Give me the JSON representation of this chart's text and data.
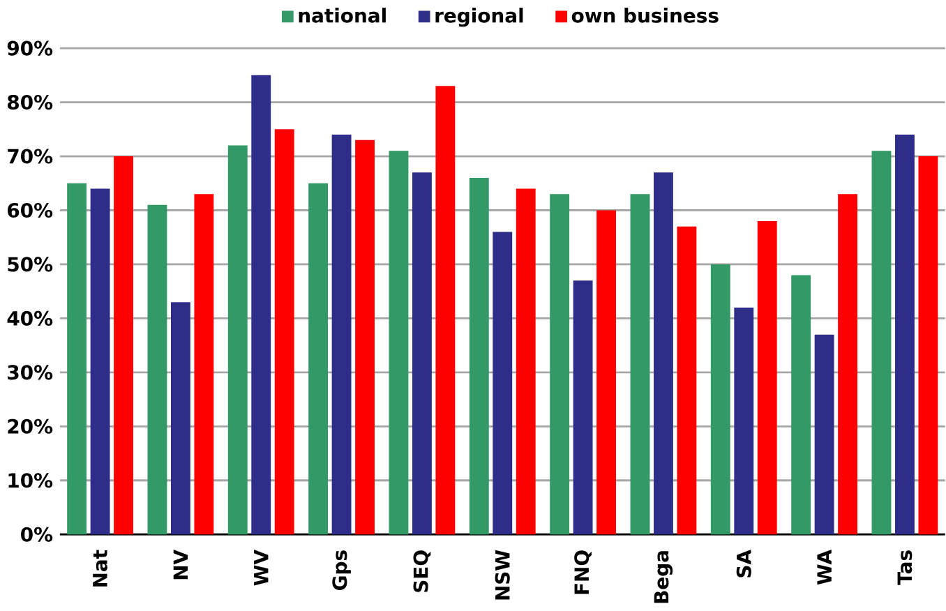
{
  "chart_data": {
    "type": "bar",
    "categories": [
      "Nat",
      "NV",
      "WV",
      "Gps",
      "SEQ",
      "NSW",
      "FNQ",
      "Bega",
      "SA",
      "WA",
      "Tas"
    ],
    "series": [
      {
        "name": "national",
        "color": "#339966",
        "values": [
          65,
          61,
          72,
          65,
          71,
          66,
          63,
          63,
          50,
          48,
          71
        ]
      },
      {
        "name": "regional",
        "color": "#2e2e8a",
        "values": [
          64,
          43,
          85,
          74,
          67,
          56,
          47,
          67,
          42,
          37,
          74
        ]
      },
      {
        "name": "own business",
        "color": "#ff0000",
        "values": [
          70,
          63,
          75,
          73,
          83,
          64,
          60,
          57,
          58,
          63,
          70
        ]
      }
    ],
    "ylim": [
      0,
      90
    ],
    "yticks": [
      {
        "value": 0,
        "label": "0%"
      },
      {
        "value": 10,
        "label": "10%"
      },
      {
        "value": 20,
        "label": "20%"
      },
      {
        "value": 30,
        "label": "30%"
      },
      {
        "value": 40,
        "label": "40%"
      },
      {
        "value": 50,
        "label": "50%"
      },
      {
        "value": 60,
        "label": "60%"
      },
      {
        "value": 70,
        "label": "70%"
      },
      {
        "value": 80,
        "label": "80%"
      },
      {
        "value": 90,
        "label": "90%"
      }
    ],
    "grid": "y",
    "legend": "top"
  }
}
